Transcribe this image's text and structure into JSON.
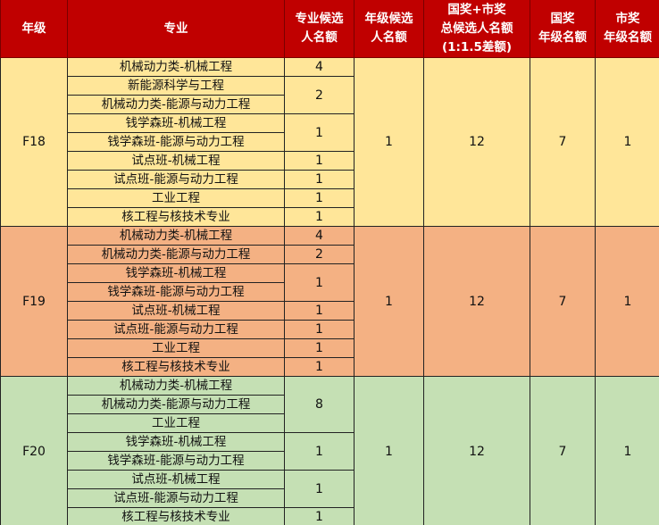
{
  "header": {
    "grade": "年级",
    "major": "专业",
    "major_quota": [
      "专业候选",
      "人名额"
    ],
    "grade_quota": [
      "年级候选",
      "人名额"
    ],
    "total_quota": [
      "国奖+市奖",
      "总候选人名额",
      "(1:1.5差额)"
    ],
    "national": [
      "国奖",
      "年级名额"
    ],
    "city": [
      "市奖",
      "年级名额"
    ]
  },
  "colors": {
    "header": "#C00000",
    "F18": "#FFE699",
    "F19": "#F4B183",
    "F20": "#C5E0B4"
  },
  "grades": [
    {
      "grade": "F18",
      "grade_quota": "1",
      "total_quota": "12",
      "national": "7",
      "city": "1",
      "groups": [
        {
          "quota": "4",
          "majors": [
            "机械动力类-机械工程"
          ]
        },
        {
          "quota": "2",
          "majors": [
            "新能源科学与工程",
            "机械动力类-能源与动力工程"
          ]
        },
        {
          "quota": "1",
          "majors": [
            "钱学森班-机械工程",
            "钱学森班-能源与动力工程"
          ]
        },
        {
          "quota": "1",
          "majors": [
            "试点班-机械工程"
          ]
        },
        {
          "quota": "1",
          "majors": [
            "试点班-能源与动力工程"
          ]
        },
        {
          "quota": "1",
          "majors": [
            "工业工程"
          ]
        },
        {
          "quota": "1",
          "majors": [
            "核工程与核技术专业"
          ]
        }
      ]
    },
    {
      "grade": "F19",
      "grade_quota": "1",
      "total_quota": "12",
      "national": "7",
      "city": "1",
      "groups": [
        {
          "quota": "4",
          "majors": [
            "机械动力类-机械工程"
          ]
        },
        {
          "quota": "2",
          "majors": [
            "机械动力类-能源与动力工程"
          ]
        },
        {
          "quota": "1",
          "majors": [
            "钱学森班-机械工程",
            "钱学森班-能源与动力工程"
          ]
        },
        {
          "quota": "1",
          "majors": [
            "试点班-机械工程"
          ]
        },
        {
          "quota": "1",
          "majors": [
            "试点班-能源与动力工程"
          ]
        },
        {
          "quota": "1",
          "majors": [
            "工业工程"
          ]
        },
        {
          "quota": "1",
          "majors": [
            "核工程与核技术专业"
          ]
        }
      ]
    },
    {
      "grade": "F20",
      "grade_quota": "1",
      "total_quota": "12",
      "national": "7",
      "city": "1",
      "groups": [
        {
          "quota": "8",
          "majors": [
            "机械动力类-机械工程",
            "机械动力类-能源与动力工程",
            "工业工程"
          ]
        },
        {
          "quota": "1",
          "majors": [
            "钱学森班-机械工程",
            "钱学森班-能源与动力工程"
          ]
        },
        {
          "quota": "1",
          "majors": [
            "试点班-机械工程",
            "试点班-能源与动力工程"
          ]
        },
        {
          "quota": "1",
          "majors": [
            "核工程与核技术专业"
          ]
        }
      ]
    }
  ]
}
